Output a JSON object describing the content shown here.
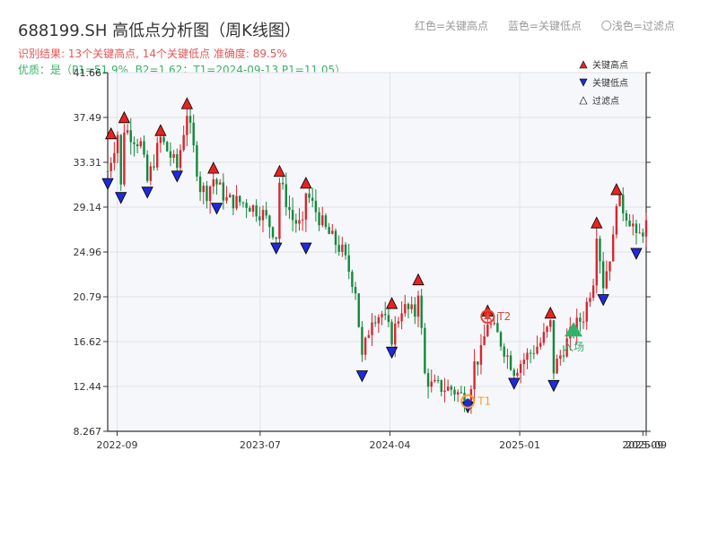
{
  "header": {
    "title": "688199.SH 高低点分析图（周K线图）",
    "line1": "识别结果: 13个关键高点, 14个关键低点  准确度: 89.5%",
    "line2": "优质：是（P1=51.9%, B2=1.62；T1=2024-09-13 P1=11.05）",
    "legend_top": [
      "红色=关键高点",
      "蓝色=关键低点",
      "〇浅色=过滤点"
    ]
  },
  "colors": {
    "up": "#d7262e",
    "down": "#12893b",
    "high": "#e8231f",
    "low": "#1f2ad8",
    "plot_bg": "#f6f7fa",
    "t1": "#f0a030",
    "t2": "#e0463a",
    "entry": "#2fb36a"
  },
  "chart_data": {
    "type": "candlestick",
    "title": "688199.SH 高低点分析图（周K线图）",
    "ylim": [
      8.267,
      41.66
    ],
    "y_ticks": [
      "8.267",
      "12.44",
      "16.62",
      "20.79",
      "24.96",
      "29.14",
      "33.31",
      "37.49",
      "41.66"
    ],
    "x_range": [
      "2022-08-12",
      "2025-09-26"
    ],
    "x_ticks": [
      {
        "date": "2022-09-01",
        "label": "2022-09"
      },
      {
        "date": "2023-07-01",
        "label": "2023-07"
      },
      {
        "date": "2024-04-01",
        "label": "2024-04"
      },
      {
        "date": "2025-01-01",
        "label": "2025-01"
      },
      {
        "date": "2025-09-19",
        "label": "2025-09"
      },
      {
        "date": "2025-09-26",
        "label": "2025-09"
      }
    ],
    "key_points": [
      {
        "date": "2022-08-19",
        "price": 35.5,
        "type": "high"
      },
      {
        "date": "2022-09-16",
        "price": 37.0,
        "type": "high"
      },
      {
        "date": "2022-12-02",
        "price": 35.8,
        "type": "high"
      },
      {
        "date": "2023-01-27",
        "price": 38.3,
        "type": "high"
      },
      {
        "date": "2023-03-24",
        "price": 32.3,
        "type": "high"
      },
      {
        "date": "2023-08-11",
        "price": 32.0,
        "type": "high"
      },
      {
        "date": "2023-10-06",
        "price": 30.9,
        "type": "high"
      },
      {
        "date": "2024-05-31",
        "price": 21.9,
        "type": "high"
      },
      {
        "date": "2024-04-05",
        "price": 19.7,
        "type": "high"
      },
      {
        "date": "2024-10-25",
        "price": 19.0,
        "type": "high"
      },
      {
        "date": "2025-03-07",
        "price": 18.8,
        "type": "high"
      },
      {
        "date": "2025-06-13",
        "price": 27.2,
        "type": "high"
      },
      {
        "date": "2025-07-25",
        "price": 30.3,
        "type": "high"
      },
      {
        "date": "2022-08-12",
        "price": 31.8,
        "type": "low"
      },
      {
        "date": "2022-09-09",
        "price": 30.5,
        "type": "low"
      },
      {
        "date": "2022-11-04",
        "price": 31.0,
        "type": "low"
      },
      {
        "date": "2023-01-06",
        "price": 32.5,
        "type": "low"
      },
      {
        "date": "2023-03-31",
        "price": 29.5,
        "type": "low"
      },
      {
        "date": "2023-08-04",
        "price": 25.8,
        "type": "low"
      },
      {
        "date": "2023-10-06",
        "price": 25.8,
        "type": "low"
      },
      {
        "date": "2024-02-02",
        "price": 13.9,
        "type": "low"
      },
      {
        "date": "2024-04-05",
        "price": 16.1,
        "type": "low"
      },
      {
        "date": "2024-09-13",
        "price": 11.0,
        "type": "low"
      },
      {
        "date": "2024-12-20",
        "price": 13.2,
        "type": "low"
      },
      {
        "date": "2025-03-14",
        "price": 13.0,
        "type": "low"
      },
      {
        "date": "2025-06-27",
        "price": 21.0,
        "type": "low"
      },
      {
        "date": "2025-09-05",
        "price": 25.3,
        "type": "low"
      }
    ],
    "annotations": [
      {
        "label": "T1",
        "date": "2024-09-13",
        "price": 11.05
      },
      {
        "label": "T2",
        "date": "2024-10-25",
        "price": 18.95
      },
      {
        "label": "入场",
        "date": "2025-04-25",
        "price": 17.6
      }
    ],
    "legend": [
      "关键高点",
      "关键低点",
      "过滤点"
    ],
    "anchors": [
      [
        "2022-08-12",
        32.5
      ],
      [
        "2022-09-02",
        36.0
      ],
      [
        "2022-09-09",
        31.0
      ],
      [
        "2022-09-16",
        36.5
      ],
      [
        "2022-10-21",
        35.0
      ],
      [
        "2022-11-04",
        31.5
      ],
      [
        "2022-12-02",
        35.5
      ],
      [
        "2023-01-06",
        32.8
      ],
      [
        "2023-01-27",
        38.0
      ],
      [
        "2023-02-24",
        31.0
      ],
      [
        "2023-03-10",
        30.5
      ],
      [
        "2023-03-24",
        31.8
      ],
      [
        "2023-04-21",
        29.8
      ],
      [
        "2023-06-02",
        29.5
      ],
      [
        "2023-07-07",
        28.5
      ],
      [
        "2023-08-04",
        26.5
      ],
      [
        "2023-08-11",
        31.5
      ],
      [
        "2023-09-08",
        28.0
      ],
      [
        "2023-09-29",
        27.2
      ],
      [
        "2023-10-06",
        30.5
      ],
      [
        "2023-11-17",
        27.0
      ],
      [
        "2023-12-22",
        25.0
      ],
      [
        "2024-01-19",
        21.5
      ],
      [
        "2024-02-02",
        15.0
      ],
      [
        "2024-02-23",
        19.0
      ],
      [
        "2024-03-15",
        19.2
      ],
      [
        "2024-04-05",
        17.0
      ],
      [
        "2024-04-26",
        19.8
      ],
      [
        "2024-05-24",
        19.2
      ],
      [
        "2024-05-31",
        21.5
      ],
      [
        "2024-06-14",
        13.5
      ],
      [
        "2024-06-28",
        12.5
      ],
      [
        "2024-08-09",
        12.2
      ],
      [
        "2024-09-13",
        11.2
      ],
      [
        "2024-09-27",
        14.5
      ],
      [
        "2024-10-11",
        15.5
      ],
      [
        "2024-10-25",
        18.5
      ],
      [
        "2024-11-15",
        17.2
      ],
      [
        "2024-12-20",
        14.0
      ],
      [
        "2025-01-10",
        15.0
      ],
      [
        "2025-02-14",
        16.5
      ],
      [
        "2025-03-07",
        18.2
      ],
      [
        "2025-03-14",
        14.0
      ],
      [
        "2025-04-04",
        16.0
      ],
      [
        "2025-04-25",
        17.8
      ],
      [
        "2025-05-16",
        19.0
      ],
      [
        "2025-06-06",
        22.5
      ],
      [
        "2025-06-13",
        27.0
      ],
      [
        "2025-06-27",
        22.0
      ],
      [
        "2025-07-18",
        26.0
      ],
      [
        "2025-07-25",
        30.0
      ],
      [
        "2025-08-29",
        27.5
      ],
      [
        "2025-09-05",
        26.0
      ],
      [
        "2025-09-26",
        27.5
      ]
    ]
  }
}
